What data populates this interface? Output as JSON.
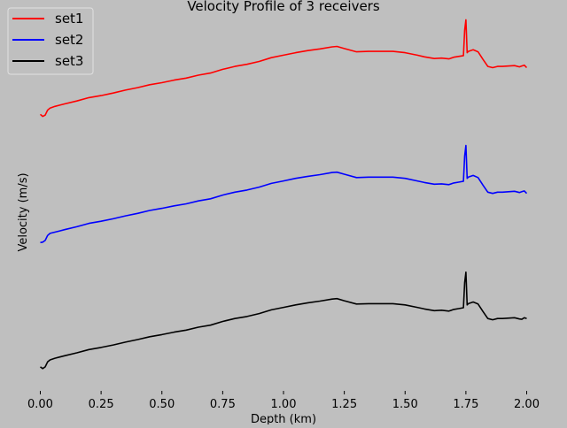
{
  "chart_data": {
    "type": "line",
    "title": "Velocity Profile of 3 receivers",
    "xlabel": "Depth (km)",
    "ylabel": "Velocity (m/s)",
    "xlim": [
      -0.02,
      2.02
    ],
    "x_ticks": [
      0.0,
      0.25,
      0.5,
      0.75,
      1.0,
      1.25,
      1.5,
      1.75,
      2.0
    ],
    "x_tick_labels": [
      "0.00",
      "0.25",
      "0.50",
      "0.75",
      "1.00",
      "1.25",
      "1.50",
      "1.75",
      "2.00"
    ],
    "y_tick_labels_shown": false,
    "grid": false,
    "legend_position": "top-left",
    "series": [
      {
        "name": "set1",
        "color": "#ff0000",
        "x": [
          0.0,
          0.01,
          0.02,
          0.03,
          0.04,
          0.06,
          0.08,
          0.1,
          0.15,
          0.2,
          0.25,
          0.3,
          0.35,
          0.4,
          0.45,
          0.5,
          0.55,
          0.6,
          0.65,
          0.7,
          0.75,
          0.8,
          0.85,
          0.9,
          0.95,
          1.0,
          1.05,
          1.1,
          1.15,
          1.2,
          1.22,
          1.25,
          1.3,
          1.35,
          1.4,
          1.45,
          1.5,
          1.55,
          1.58,
          1.62,
          1.65,
          1.68,
          1.7,
          1.72,
          1.74,
          1.745,
          1.75,
          1.755,
          1.76,
          1.78,
          1.8,
          1.82,
          1.84,
          1.86,
          1.88,
          1.9,
          1.95,
          1.97,
          1.98,
          1.99,
          2.0
        ],
        "y": [
          7.8,
          7.3,
          7.6,
          8.8,
          9.3,
          9.7,
          10.0,
          10.3,
          11.0,
          11.8,
          12.3,
          12.9,
          13.6,
          14.2,
          14.9,
          15.4,
          16.0,
          16.5,
          17.2,
          17.7,
          18.6,
          19.3,
          19.8,
          20.5,
          21.4,
          22.0,
          22.6,
          23.1,
          23.5,
          24.0,
          24.1,
          23.6,
          22.8,
          22.9,
          22.9,
          22.9,
          22.6,
          22.0,
          21.6,
          21.2,
          21.3,
          21.1,
          21.5,
          21.7,
          21.9,
          28.0,
          30.5,
          22.6,
          22.9,
          23.3,
          22.8,
          21.0,
          19.3,
          19.0,
          19.3,
          19.3,
          19.5,
          19.2,
          19.4,
          19.6,
          19.0
        ]
      },
      {
        "name": "set2",
        "color": "#0000ff",
        "x": [
          0.0,
          0.01,
          0.02,
          0.03,
          0.04,
          0.06,
          0.08,
          0.1,
          0.15,
          0.2,
          0.25,
          0.3,
          0.35,
          0.4,
          0.45,
          0.5,
          0.55,
          0.6,
          0.65,
          0.7,
          0.75,
          0.8,
          0.85,
          0.9,
          0.95,
          1.0,
          1.05,
          1.1,
          1.15,
          1.2,
          1.22,
          1.25,
          1.3,
          1.35,
          1.4,
          1.45,
          1.5,
          1.55,
          1.58,
          1.62,
          1.65,
          1.68,
          1.7,
          1.72,
          1.74,
          1.745,
          1.75,
          1.755,
          1.76,
          1.78,
          1.8,
          1.82,
          1.84,
          1.86,
          1.88,
          1.9,
          1.95,
          1.97,
          1.98,
          1.99,
          2.0
        ],
        "y": [
          7.8,
          7.9,
          8.3,
          9.5,
          10.0,
          10.3,
          10.6,
          10.9,
          11.6,
          12.4,
          12.9,
          13.5,
          14.2,
          14.8,
          15.5,
          16.0,
          16.6,
          17.1,
          17.8,
          18.3,
          19.2,
          19.9,
          20.4,
          21.1,
          22.0,
          22.6,
          23.2,
          23.7,
          24.1,
          24.6,
          24.7,
          24.2,
          23.4,
          23.5,
          23.5,
          23.5,
          23.2,
          22.6,
          22.2,
          21.8,
          21.9,
          21.7,
          22.1,
          22.3,
          22.5,
          28.6,
          31.1,
          23.2,
          23.5,
          23.9,
          23.4,
          21.6,
          19.9,
          19.6,
          19.9,
          19.9,
          20.1,
          19.8,
          20.0,
          20.2,
          19.6
        ]
      },
      {
        "name": "set3",
        "color": "#000000",
        "x": [
          0.0,
          0.01,
          0.02,
          0.03,
          0.04,
          0.06,
          0.08,
          0.1,
          0.15,
          0.2,
          0.25,
          0.3,
          0.35,
          0.4,
          0.45,
          0.5,
          0.55,
          0.6,
          0.65,
          0.7,
          0.75,
          0.8,
          0.85,
          0.9,
          0.95,
          1.0,
          1.05,
          1.1,
          1.15,
          1.2,
          1.22,
          1.25,
          1.3,
          1.35,
          1.4,
          1.45,
          1.5,
          1.55,
          1.58,
          1.62,
          1.65,
          1.68,
          1.7,
          1.72,
          1.74,
          1.745,
          1.75,
          1.755,
          1.76,
          1.78,
          1.8,
          1.82,
          1.84,
          1.86,
          1.88,
          1.9,
          1.95,
          1.97,
          1.98,
          1.99,
          2.0
        ],
        "y": [
          7.5,
          7.1,
          7.5,
          8.7,
          9.2,
          9.6,
          9.9,
          10.2,
          10.9,
          11.7,
          12.2,
          12.8,
          13.5,
          14.1,
          14.8,
          15.3,
          15.9,
          16.4,
          17.1,
          17.6,
          18.5,
          19.2,
          19.7,
          20.4,
          21.3,
          21.9,
          22.5,
          23.0,
          23.4,
          23.9,
          24.0,
          23.5,
          22.7,
          22.8,
          22.8,
          22.8,
          22.5,
          21.9,
          21.5,
          21.1,
          21.2,
          21.0,
          21.4,
          21.6,
          21.8,
          27.9,
          30.4,
          22.5,
          22.8,
          23.2,
          22.7,
          20.9,
          19.2,
          18.9,
          19.2,
          19.2,
          19.4,
          19.1,
          19.0,
          19.4,
          19.2
        ]
      }
    ]
  }
}
